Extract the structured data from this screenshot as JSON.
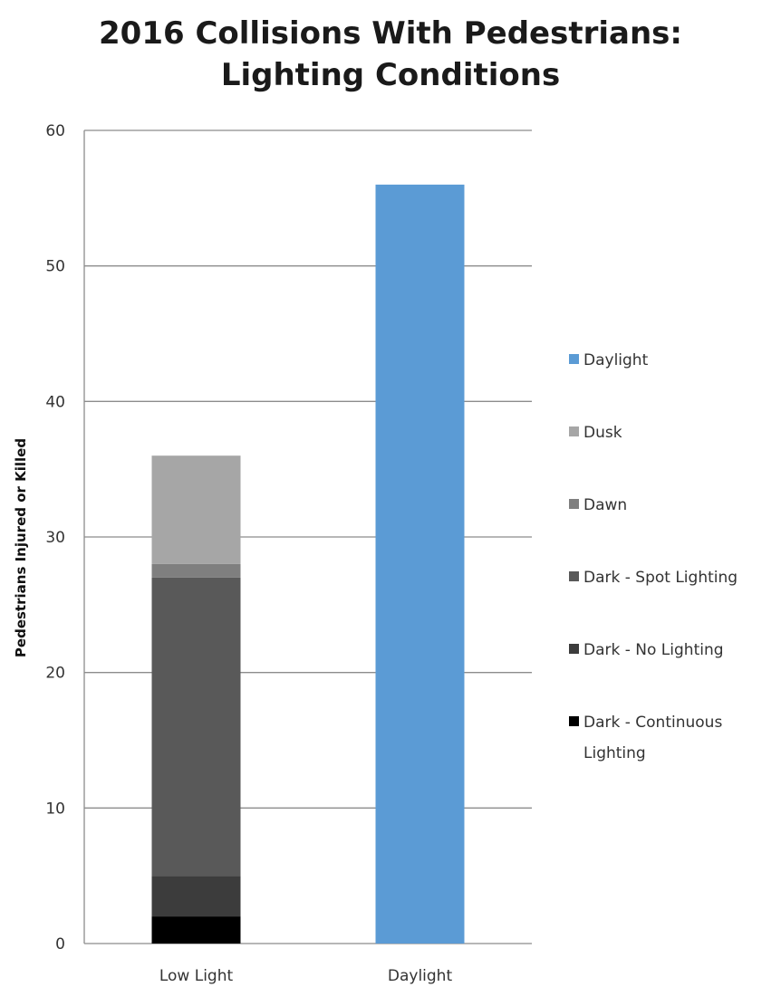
{
  "chart_data": {
    "type": "bar",
    "stacked": true,
    "title": [
      "2016 Collisions With Pedestrians:",
      "Lighting Conditions"
    ],
    "xlabel": "",
    "ylabel": "Pedestrians Injured or Killed",
    "ylim": [
      0,
      60
    ],
    "yticks": [
      0,
      10,
      20,
      30,
      40,
      50,
      60
    ],
    "grid": true,
    "legend_position": "right",
    "categories": [
      "Low Light",
      "Daylight"
    ],
    "series": [
      {
        "name": "Dark - Continuous Lighting",
        "legend_lines": [
          "Dark - Continuous",
          "Lighting"
        ],
        "color": "#000000",
        "values": [
          2,
          0
        ]
      },
      {
        "name": "Dark - No Lighting",
        "color": "#3c3c3c",
        "values": [
          3,
          0
        ]
      },
      {
        "name": "Dark - Spot Lighting",
        "color": "#595959",
        "values": [
          22,
          0
        ]
      },
      {
        "name": "Dawn",
        "color": "#7f7f7f",
        "values": [
          1,
          0
        ]
      },
      {
        "name": "Dusk",
        "color": "#a6a6a6",
        "values": [
          8,
          0
        ]
      },
      {
        "name": "Daylight",
        "color": "#5b9bd5",
        "values": [
          0,
          56
        ]
      }
    ]
  }
}
